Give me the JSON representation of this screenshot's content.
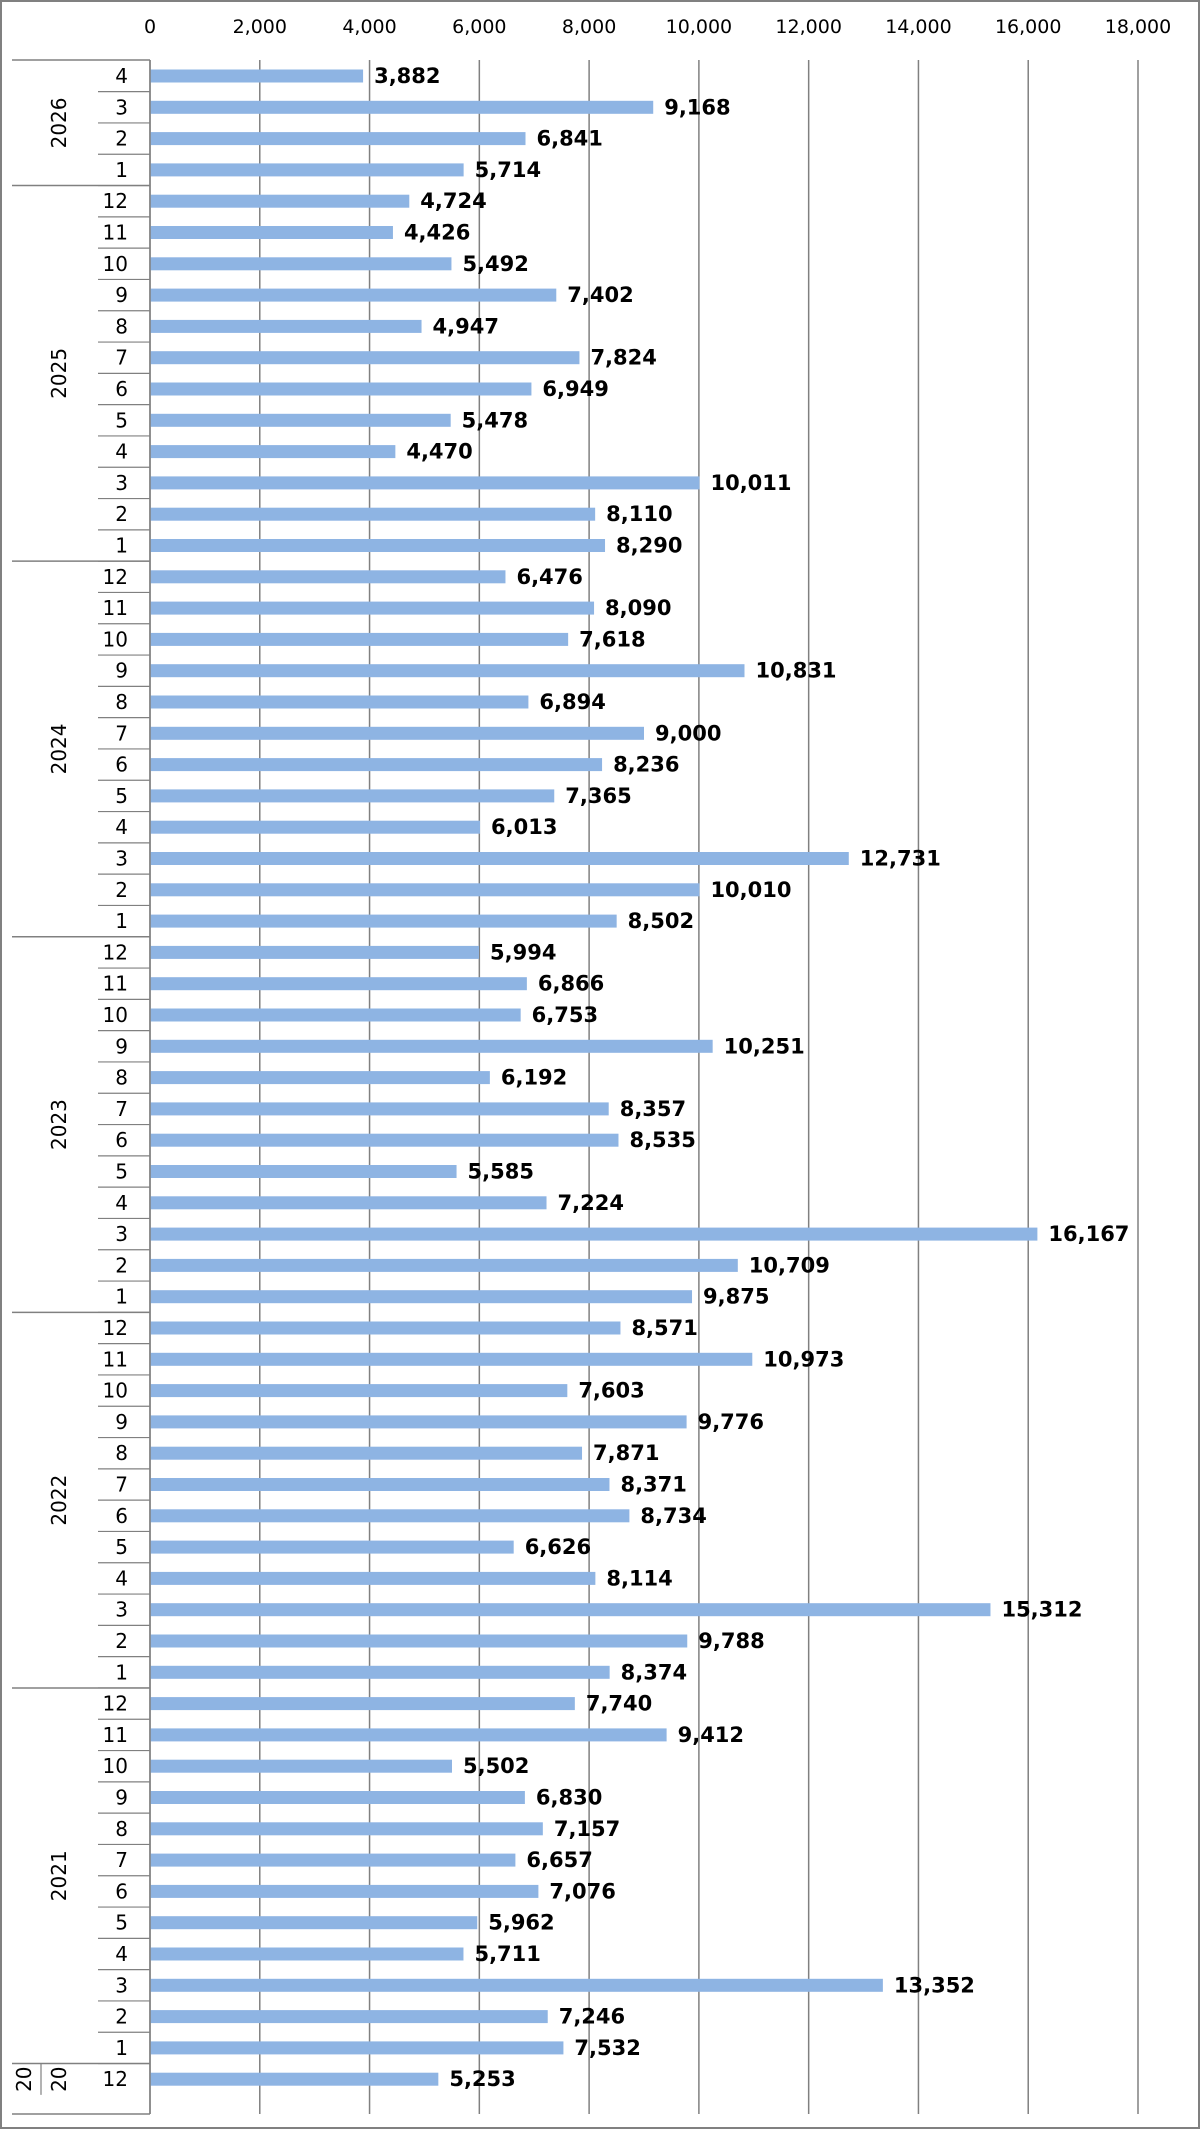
{
  "chart_data": {
    "type": "bar",
    "orientation": "horizontal",
    "title": "",
    "xlabel": "",
    "ylabel": "",
    "xlim": [
      0,
      18000
    ],
    "x_ticks": [
      0,
      2000,
      4000,
      6000,
      8000,
      10000,
      12000,
      14000,
      16000,
      18000
    ],
    "x_tick_labels": [
      "0",
      "2,000",
      "4,000",
      "6,000",
      "8,000",
      "10,000",
      "12,000",
      "14,000",
      "16,000",
      "18,000"
    ],
    "grid": true,
    "legend": "none",
    "bar_color": "#8eb4e3",
    "categories": [
      {
        "year": "2026",
        "month": "4",
        "value": 3882,
        "label": "3,882"
      },
      {
        "year": "2026",
        "month": "3",
        "value": 9168,
        "label": "9,168"
      },
      {
        "year": "2026",
        "month": "2",
        "value": 6841,
        "label": "6,841"
      },
      {
        "year": "2026",
        "month": "1",
        "value": 5714,
        "label": "5,714"
      },
      {
        "year": "2025",
        "month": "12",
        "value": 4724,
        "label": "4,724"
      },
      {
        "year": "2025",
        "month": "11",
        "value": 4426,
        "label": "4,426"
      },
      {
        "year": "2025",
        "month": "10",
        "value": 5492,
        "label": "5,492"
      },
      {
        "year": "2025",
        "month": "9",
        "value": 7402,
        "label": "7,402"
      },
      {
        "year": "2025",
        "month": "8",
        "value": 4947,
        "label": "4,947"
      },
      {
        "year": "2025",
        "month": "7",
        "value": 7824,
        "label": "7,824"
      },
      {
        "year": "2025",
        "month": "6",
        "value": 6949,
        "label": "6,949"
      },
      {
        "year": "2025",
        "month": "5",
        "value": 5478,
        "label": "5,478"
      },
      {
        "year": "2025",
        "month": "4",
        "value": 4470,
        "label": "4,470"
      },
      {
        "year": "2025",
        "month": "3",
        "value": 10011,
        "label": "10,011"
      },
      {
        "year": "2025",
        "month": "2",
        "value": 8110,
        "label": "8,110"
      },
      {
        "year": "2025",
        "month": "1",
        "value": 8290,
        "label": "8,290"
      },
      {
        "year": "2024",
        "month": "12",
        "value": 6476,
        "label": "6,476"
      },
      {
        "year": "2024",
        "month": "11",
        "value": 8090,
        "label": "8,090"
      },
      {
        "year": "2024",
        "month": "10",
        "value": 7618,
        "label": "7,618"
      },
      {
        "year": "2024",
        "month": "9",
        "value": 10831,
        "label": "10,831"
      },
      {
        "year": "2024",
        "month": "8",
        "value": 6894,
        "label": "6,894"
      },
      {
        "year": "2024",
        "month": "7",
        "value": 9000,
        "label": "9,000"
      },
      {
        "year": "2024",
        "month": "6",
        "value": 8236,
        "label": "8,236"
      },
      {
        "year": "2024",
        "month": "5",
        "value": 7365,
        "label": "7,365"
      },
      {
        "year": "2024",
        "month": "4",
        "value": 6013,
        "label": "6,013"
      },
      {
        "year": "2024",
        "month": "3",
        "value": 12731,
        "label": "12,731"
      },
      {
        "year": "2024",
        "month": "2",
        "value": 10010,
        "label": "10,010"
      },
      {
        "year": "2024",
        "month": "1",
        "value": 8502,
        "label": "8,502"
      },
      {
        "year": "2023",
        "month": "12",
        "value": 5994,
        "label": "5,994"
      },
      {
        "year": "2023",
        "month": "11",
        "value": 6866,
        "label": "6,866"
      },
      {
        "year": "2023",
        "month": "10",
        "value": 6753,
        "label": "6,753"
      },
      {
        "year": "2023",
        "month": "9",
        "value": 10251,
        "label": "10,251"
      },
      {
        "year": "2023",
        "month": "8",
        "value": 6192,
        "label": "6,192"
      },
      {
        "year": "2023",
        "month": "7",
        "value": 8357,
        "label": "8,357"
      },
      {
        "year": "2023",
        "month": "6",
        "value": 8535,
        "label": "8,535"
      },
      {
        "year": "2023",
        "month": "5",
        "value": 5585,
        "label": "5,585"
      },
      {
        "year": "2023",
        "month": "4",
        "value": 7224,
        "label": "7,224"
      },
      {
        "year": "2023",
        "month": "3",
        "value": 16167,
        "label": "16,167"
      },
      {
        "year": "2023",
        "month": "2",
        "value": 10709,
        "label": "10,709"
      },
      {
        "year": "2023",
        "month": "1",
        "value": 9875,
        "label": "9,875"
      },
      {
        "year": "2022",
        "month": "12",
        "value": 8571,
        "label": "8,571"
      },
      {
        "year": "2022",
        "month": "11",
        "value": 10973,
        "label": "10,973"
      },
      {
        "year": "2022",
        "month": "10",
        "value": 7603,
        "label": "7,603"
      },
      {
        "year": "2022",
        "month": "9",
        "value": 9776,
        "label": "9,776"
      },
      {
        "year": "2022",
        "month": "8",
        "value": 7871,
        "label": "7,871"
      },
      {
        "year": "2022",
        "month": "7",
        "value": 8371,
        "label": "8,371"
      },
      {
        "year": "2022",
        "month": "6",
        "value": 8734,
        "label": "8,734"
      },
      {
        "year": "2022",
        "month": "5",
        "value": 6626,
        "label": "6,626"
      },
      {
        "year": "2022",
        "month": "4",
        "value": 8114,
        "label": "8,114"
      },
      {
        "year": "2022",
        "month": "3",
        "value": 15312,
        "label": "15,312"
      },
      {
        "year": "2022",
        "month": "2",
        "value": 9788,
        "label": "9,788"
      },
      {
        "year": "2022",
        "month": "1",
        "value": 8374,
        "label": "8,374"
      },
      {
        "year": "2021",
        "month": "12",
        "value": 7740,
        "label": "7,740"
      },
      {
        "year": "2021",
        "month": "11",
        "value": 9412,
        "label": "9,412"
      },
      {
        "year": "2021",
        "month": "10",
        "value": 5502,
        "label": "5,502"
      },
      {
        "year": "2021",
        "month": "9",
        "value": 6830,
        "label": "6,830"
      },
      {
        "year": "2021",
        "month": "8",
        "value": 7157,
        "label": "7,157"
      },
      {
        "year": "2021",
        "month": "7",
        "value": 6657,
        "label": "6,657"
      },
      {
        "year": "2021",
        "month": "6",
        "value": 7076,
        "label": "7,076"
      },
      {
        "year": "2021",
        "month": "5",
        "value": 5962,
        "label": "5,962"
      },
      {
        "year": "2021",
        "month": "4",
        "value": 5711,
        "label": "5,711"
      },
      {
        "year": "2021",
        "month": "3",
        "value": 13352,
        "label": "13,352"
      },
      {
        "year": "2021",
        "month": "2",
        "value": 7246,
        "label": "7,246"
      },
      {
        "year": "2021",
        "month": "1",
        "value": 7532,
        "label": "7,532"
      },
      {
        "year": "2020",
        "month": "12",
        "value": 5253,
        "label": "5,253"
      }
    ],
    "year_groups": [
      {
        "label": "2026",
        "count": 4
      },
      {
        "label": "2025",
        "count": 12
      },
      {
        "label": "2024",
        "count": 12
      },
      {
        "label": "2023",
        "count": 12
      },
      {
        "label": "2022",
        "count": 12
      },
      {
        "label": "2021",
        "count": 12
      },
      {
        "label": "20",
        "label2": "20",
        "count": 1
      }
    ]
  }
}
